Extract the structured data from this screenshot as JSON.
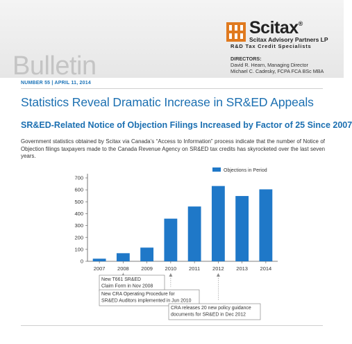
{
  "logo": {
    "name": "Scitax",
    "mark": "®",
    "company": "Scitax Advisory Partners LP",
    "tagline": "R&D Tax Credit Specialists",
    "brand_color": "#e07a1f"
  },
  "bulletin_word": "Bulletin",
  "directors": {
    "heading": "DIRECTORS:",
    "names": [
      "David R. Hearn, Managing Director",
      "Michael C. Cadesky, FCPA FCA BSc MBA"
    ]
  },
  "issue": {
    "text": "NUMBER 55  |  APRIL 11, 2014",
    "color": "#1b73b8"
  },
  "main_title": "Statistics Reveal Dramatic Increase in SR&ED Appeals",
  "sub_title": "SR&ED-Related Notice of Objection Filings Increased by Factor of 25 Since 2007",
  "body_text": "Government statistics obtained by Scitax via Canada’s “Access to Information” process indicate that the number of Notice of Objection filings taxpayers made to the Canada Revenue Agency on SR&ED tax credits has skyrocketed over the last seven years.",
  "chart_data": {
    "type": "bar",
    "categories": [
      "2007",
      "2008",
      "2009",
      "2010",
      "2011",
      "2012",
      "2013",
      "2014"
    ],
    "series": [
      {
        "name": "Objections in Period",
        "values": [
          22,
          68,
          115,
          358,
          460,
          632,
          548,
          604
        ],
        "color": "#1f78c8"
      }
    ],
    "ylim": [
      0,
      700
    ],
    "yticks": [
      0,
      100,
      200,
      300,
      400,
      500,
      600,
      700
    ],
    "grid": false,
    "legend": "top-right",
    "annotations": [
      {
        "year": "2008",
        "lines": [
          "New T661 SR&ED",
          "Claim Form in Nov 2008"
        ]
      },
      {
        "year": "2010",
        "lines": [
          "New CRA Operating Procedure for",
          "SR&ED Auditors implemented in Jun 2010"
        ]
      },
      {
        "year": "2012",
        "lines": [
          "CRA releases 20 new policy guidance",
          "documents for SR&ED in Dec 2012"
        ]
      }
    ]
  }
}
